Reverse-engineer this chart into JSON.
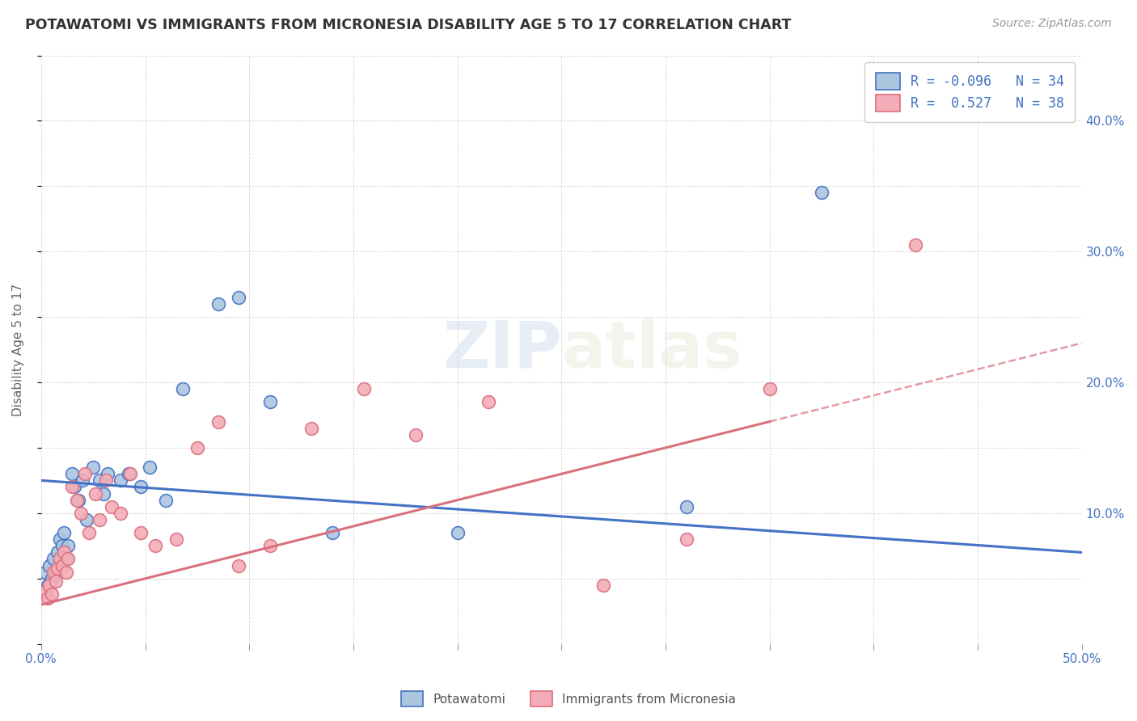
{
  "title": "POTAWATOMI VS IMMIGRANTS FROM MICRONESIA DISABILITY AGE 5 TO 17 CORRELATION CHART",
  "source": "Source: ZipAtlas.com",
  "ylabel": "Disability Age 5 to 17",
  "xlim": [
    0.0,
    0.5
  ],
  "ylim": [
    0.0,
    0.45
  ],
  "x_ticks": [
    0.0,
    0.05,
    0.1,
    0.15,
    0.2,
    0.25,
    0.3,
    0.35,
    0.4,
    0.45,
    0.5
  ],
  "y_ticks": [
    0.0,
    0.05,
    0.1,
    0.15,
    0.2,
    0.25,
    0.3,
    0.35,
    0.4,
    0.45
  ],
  "r_potawatomi": -0.096,
  "n_potawatomi": 34,
  "r_micronesia": 0.527,
  "n_micronesia": 38,
  "potawatomi_color": "#adc6e0",
  "micronesia_color": "#f4adb8",
  "potawatomi_line_color": "#4472c4",
  "micronesia_line_color": "#d9707c",
  "legend_label_1": "Potawatomi",
  "legend_label_2": "Immigrants from Micronesia",
  "watermark_zip": "ZIP",
  "watermark_atlas": "atlas",
  "potawatomi_x": [
    0.002,
    0.003,
    0.004,
    0.005,
    0.006,
    0.007,
    0.008,
    0.009,
    0.01,
    0.011,
    0.012,
    0.013,
    0.015,
    0.016,
    0.018,
    0.02,
    0.022,
    0.025,
    0.028,
    0.03,
    0.032,
    0.038,
    0.042,
    0.048,
    0.052,
    0.06,
    0.068,
    0.085,
    0.095,
    0.11,
    0.14,
    0.2,
    0.31,
    0.375
  ],
  "potawatomi_y": [
    0.055,
    0.045,
    0.06,
    0.05,
    0.065,
    0.055,
    0.07,
    0.08,
    0.075,
    0.085,
    0.065,
    0.075,
    0.13,
    0.12,
    0.11,
    0.125,
    0.095,
    0.135,
    0.125,
    0.115,
    0.13,
    0.125,
    0.13,
    0.12,
    0.135,
    0.11,
    0.195,
    0.26,
    0.265,
    0.185,
    0.085,
    0.085,
    0.105,
    0.345
  ],
  "micronesia_x": [
    0.002,
    0.003,
    0.004,
    0.005,
    0.006,
    0.007,
    0.008,
    0.009,
    0.01,
    0.011,
    0.012,
    0.013,
    0.015,
    0.017,
    0.019,
    0.021,
    0.023,
    0.026,
    0.028,
    0.031,
    0.034,
    0.038,
    0.043,
    0.048,
    0.055,
    0.065,
    0.075,
    0.085,
    0.095,
    0.11,
    0.13,
    0.155,
    0.18,
    0.215,
    0.27,
    0.31,
    0.35,
    0.42
  ],
  "micronesia_y": [
    0.04,
    0.035,
    0.045,
    0.038,
    0.055,
    0.048,
    0.058,
    0.065,
    0.06,
    0.07,
    0.055,
    0.065,
    0.12,
    0.11,
    0.1,
    0.13,
    0.085,
    0.115,
    0.095,
    0.125,
    0.105,
    0.1,
    0.13,
    0.085,
    0.075,
    0.08,
    0.15,
    0.17,
    0.06,
    0.075,
    0.165,
    0.195,
    0.16,
    0.185,
    0.045,
    0.08,
    0.195,
    0.305
  ]
}
